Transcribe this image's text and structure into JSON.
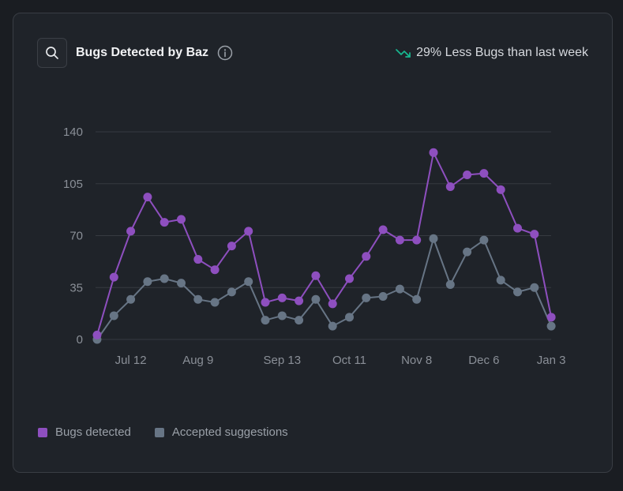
{
  "header": {
    "title": "Bugs Detected by Baz",
    "trend_text": "29% Less Bugs than last week"
  },
  "colors": {
    "bugs": "#8e4fbf",
    "accepted": "#677585",
    "trend": "#17b890",
    "grid": "#363a41",
    "axis_text": "#8a8f97"
  },
  "legend": {
    "bugs_label": "Bugs detected",
    "accepted_label": "Accepted suggestions"
  },
  "chart_data": {
    "type": "line",
    "title": "Bugs Detected by Baz",
    "xlabel": "",
    "ylabel": "",
    "ylim": [
      0,
      140
    ],
    "yticks": [
      0,
      35,
      70,
      105,
      140
    ],
    "x_tick_labels": [
      "Jul 12",
      "Aug 9",
      "Sep 13",
      "Oct 11",
      "Nov 8",
      "Dec 6",
      "Jan 3"
    ],
    "x_tick_indices": [
      2,
      6,
      11,
      15,
      19,
      23,
      27
    ],
    "point_count": 28,
    "series": [
      {
        "name": "Bugs detected",
        "values": [
          3,
          42,
          73,
          96,
          79,
          81,
          54,
          47,
          63,
          73,
          25,
          28,
          26,
          43,
          24,
          41,
          56,
          74,
          67,
          67,
          126,
          103,
          111,
          112,
          101,
          75,
          71,
          15
        ]
      },
      {
        "name": "Accepted suggestions",
        "values": [
          0,
          16,
          27,
          39,
          41,
          38,
          27,
          25,
          32,
          39,
          13,
          16,
          13,
          27,
          9,
          15,
          28,
          29,
          34,
          27,
          68,
          37,
          59,
          67,
          40,
          32,
          35,
          9
        ]
      }
    ]
  }
}
